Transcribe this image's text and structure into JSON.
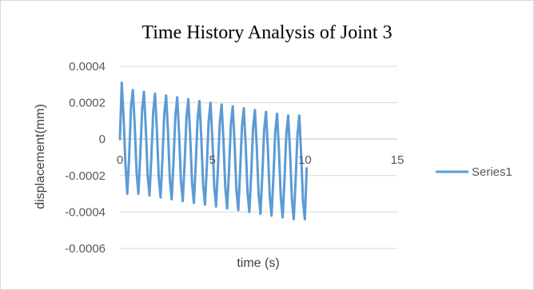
{
  "chart_data": {
    "type": "line",
    "title": "Time History Analysis of Joint 3",
    "xlabel": "time (s)",
    "ylabel": "displacement(mm)",
    "xlim": [
      0,
      15
    ],
    "ylim": [
      -0.0006,
      0.0004
    ],
    "x_ticks": [
      "0",
      "5",
      "10",
      "15"
    ],
    "y_ticks": [
      "0.0004",
      "0.0002",
      "0",
      "-0.0002",
      "-0.0004",
      "-0.0006"
    ],
    "grid": "horizontal",
    "legend": "right",
    "series": [
      {
        "name": "Series1",
        "color": "#5b9bd5",
        "x": [
          0,
          0.1,
          0.2,
          0.3,
          0.4,
          0.5,
          0.6,
          0.7,
          0.8,
          0.9,
          1.0,
          1.1,
          1.2,
          1.3,
          1.4,
          1.5,
          1.6,
          1.7,
          1.8,
          1.9,
          2.0,
          2.1,
          2.2,
          2.3,
          2.4,
          2.5,
          2.6,
          2.7,
          2.8,
          2.9,
          3.0,
          3.1,
          3.2,
          3.3,
          3.4,
          3.5,
          3.6,
          3.7,
          3.8,
          3.9,
          4.0,
          4.1,
          4.2,
          4.3,
          4.4,
          4.5,
          4.6,
          4.7,
          4.8,
          4.9,
          5.0,
          5.1,
          5.2,
          5.3,
          5.4,
          5.5,
          5.6,
          5.7,
          5.8,
          5.9,
          6.0,
          6.1,
          6.2,
          6.3,
          6.4,
          6.5,
          6.6,
          6.7,
          6.8,
          6.9,
          7.0,
          7.1,
          7.2,
          7.3,
          7.4,
          7.5,
          7.6,
          7.7,
          7.8,
          7.9,
          8.0,
          8.1,
          8.2,
          8.3,
          8.4,
          8.5,
          8.6,
          8.7,
          8.8,
          8.9,
          9.0,
          9.1,
          9.2,
          9.3,
          9.4,
          9.5,
          9.6,
          9.7,
          9.8,
          9.9,
          10.0,
          10.1
        ],
        "values": [
          0,
          0.00031,
          0.00012,
          -0.00014,
          -0.0003,
          -0.0001,
          0.00018,
          0.00027,
          8e-05,
          -0.00018,
          -0.0003,
          -9e-05,
          0.00016,
          0.00026,
          6e-05,
          -0.0002,
          -0.00031,
          -0.0001,
          0.00015,
          0.00025,
          5e-05,
          -0.00021,
          -0.00032,
          -0.00011,
          0.00014,
          0.00024,
          4e-05,
          -0.00022,
          -0.00033,
          -0.00012,
          0.00013,
          0.00023,
          3e-05,
          -0.00023,
          -0.00034,
          -0.00013,
          0.00012,
          0.00022,
          2e-05,
          -0.00024,
          -0.00035,
          -0.00014,
          0.00011,
          0.00021,
          1e-05,
          -0.00025,
          -0.00036,
          -0.00015,
          0.0001,
          0.0002,
          0.0,
          -0.00026,
          -0.00037,
          -0.00016,
          9e-05,
          0.00019,
          -1e-05,
          -0.00027,
          -0.00038,
          -0.00017,
          8e-05,
          0.00018,
          -2e-05,
          -0.00028,
          -0.00039,
          -0.00018,
          7e-05,
          0.00017,
          -3e-05,
          -0.00029,
          -0.0004,
          -0.00019,
          6e-05,
          0.00016,
          -4e-05,
          -0.0003,
          -0.00041,
          -0.0002,
          5e-05,
          0.00015,
          -5e-05,
          -0.00031,
          -0.00042,
          -0.00021,
          4e-05,
          0.00014,
          -6e-05,
          -0.00032,
          -0.00043,
          -0.00022,
          3e-05,
          0.00013,
          -7e-05,
          -0.00033,
          -0.00044,
          -0.00023,
          2e-05,
          0.00013,
          -8e-05,
          -0.00034,
          -0.00044,
          -0.00016
        ]
      }
    ]
  }
}
